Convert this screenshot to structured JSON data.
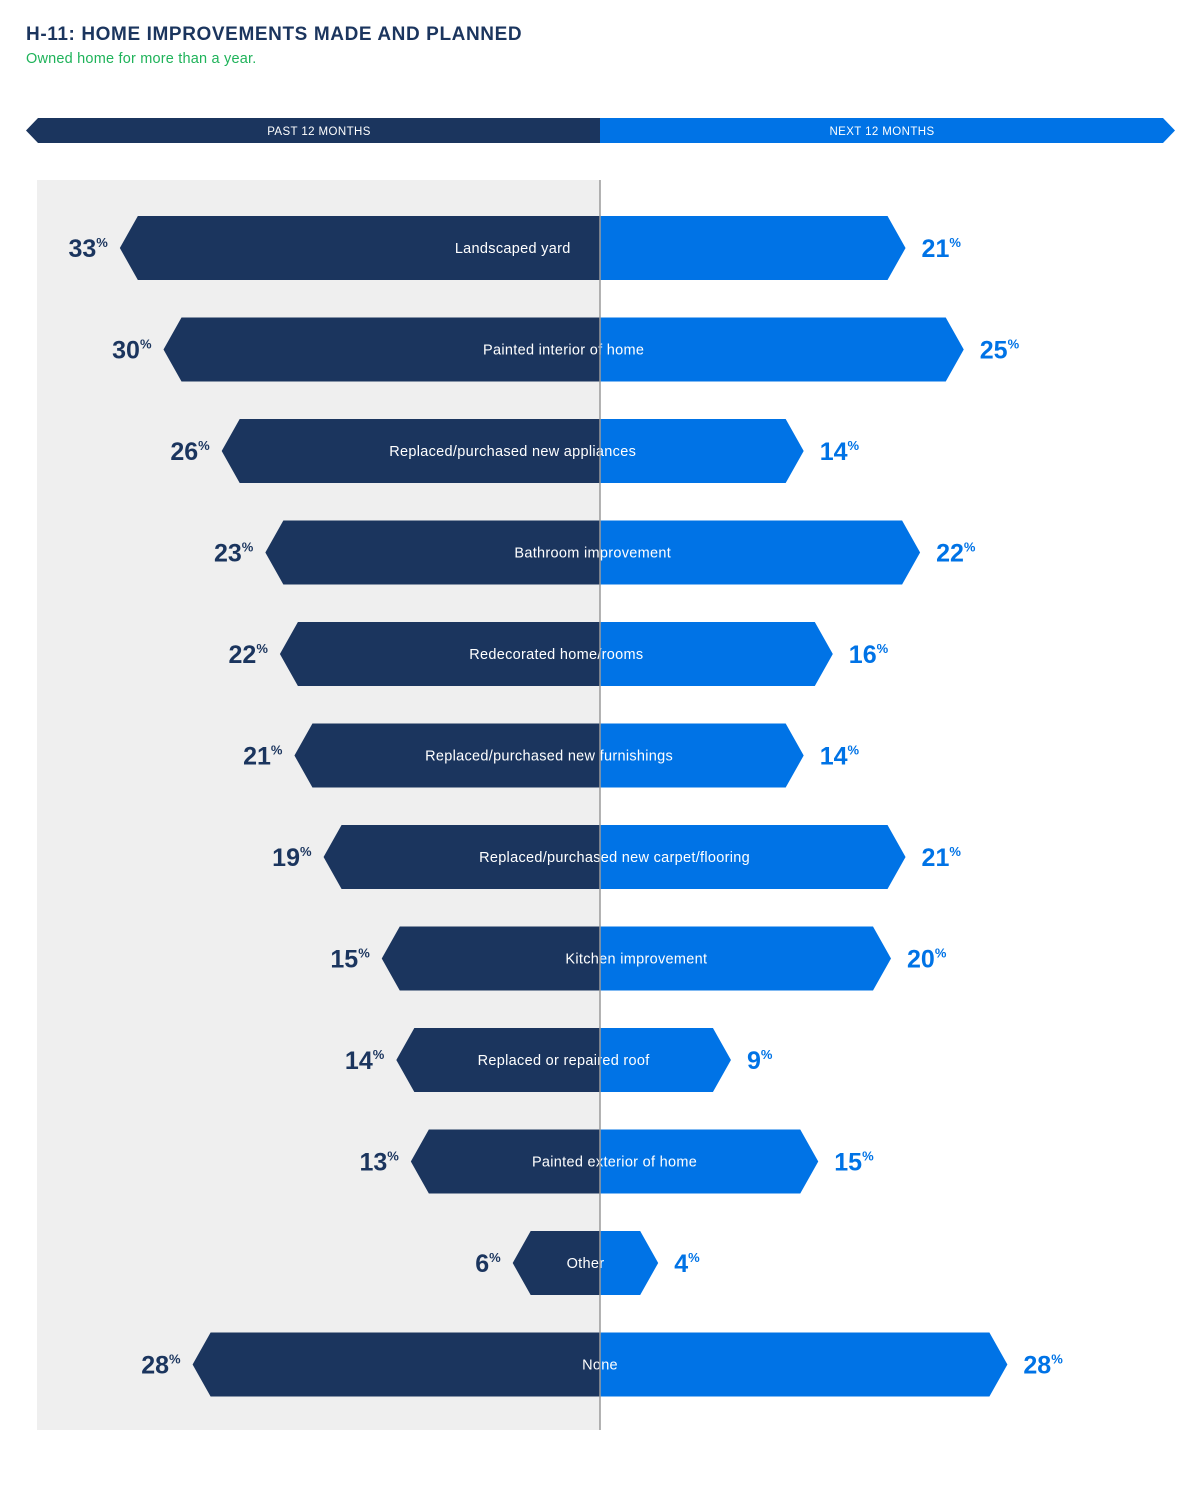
{
  "header": {
    "title": "H-11: HOME IMPROVEMENTS MADE AND PLANNED",
    "subtitle": "Owned home for more than a year."
  },
  "colors": {
    "past": "#1b355e",
    "next": "#0073e6",
    "panel": "#efefef",
    "divider": "#9a9a9a",
    "label_text": "#ffffff"
  },
  "chart_data": {
    "type": "bar",
    "orientation": "horizontal-diverging",
    "unit": "%",
    "categories": [
      "Landscaped yard",
      "Painted interior of home",
      "Replaced/purchased new appliances",
      "Bathroom improvement",
      "Redecorated home/rooms",
      "Replaced/purchased new furnishings",
      "Replaced/purchased new carpet/flooring",
      "Kitchen improvement",
      "Replaced or repaired roof",
      "Painted exterior of home",
      "Other",
      "None"
    ],
    "series": [
      {
        "name": "PAST 12 MONTHS",
        "direction": "left",
        "values": [
          33,
          30,
          26,
          23,
          22,
          21,
          19,
          15,
          14,
          13,
          6,
          28
        ]
      },
      {
        "name": "NEXT 12 MONTHS",
        "direction": "right",
        "values": [
          21,
          25,
          14,
          22,
          16,
          14,
          21,
          20,
          9,
          15,
          4,
          28
        ]
      }
    ]
  }
}
